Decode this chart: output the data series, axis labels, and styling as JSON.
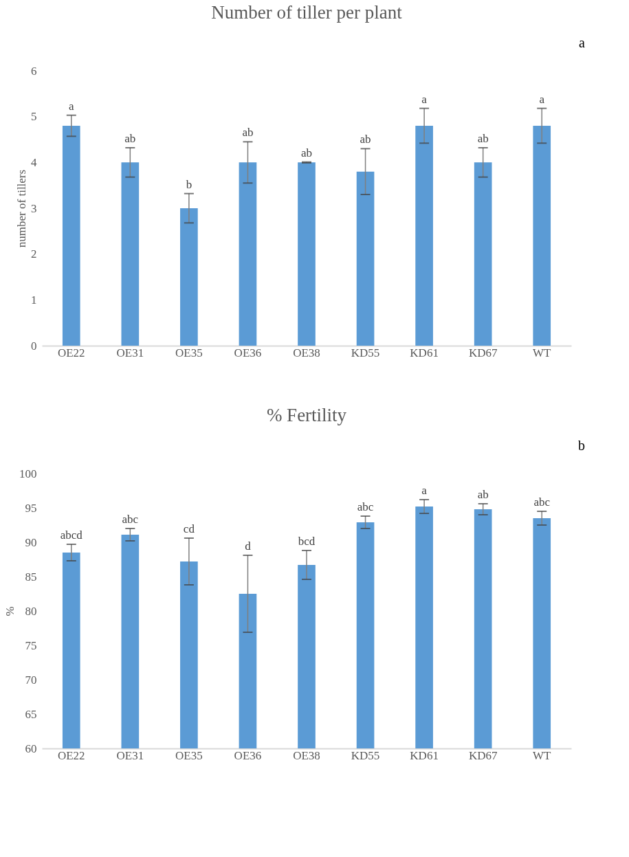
{
  "chart_data": [
    {
      "type": "bar",
      "title": "Number of tiller per plant",
      "ylabel": "number of tillers",
      "categories": [
        "OE22",
        "OE31",
        "OE35",
        "OE36",
        "OE38",
        "KD55",
        "KD61",
        "KD67",
        "WT"
      ],
      "values": [
        4.8,
        4.0,
        3.0,
        4.0,
        4.0,
        3.8,
        4.8,
        4.0,
        4.8
      ],
      "errors": [
        0.23,
        0.32,
        0.32,
        0.45,
        0.01,
        0.5,
        0.38,
        0.32,
        0.38
      ],
      "color": "#5b9bd5",
      "ylim": [
        0,
        6
      ],
      "yticks": [
        0,
        1,
        2,
        3,
        4,
        5,
        6
      ],
      "grid": false,
      "annotations": [
        {
          "text": "a",
          "x": "OE22",
          "y": 5.03
        },
        {
          "text": "ab",
          "x": "OE31",
          "y": 4.32
        },
        {
          "text": "b",
          "x": "OE35",
          "y": 3.32
        },
        {
          "text": "ab",
          "x": "OE36",
          "y": 4.45
        },
        {
          "text": "ab",
          "x": "OE38",
          "y": 4.01
        },
        {
          "text": "ab",
          "x": "KD55",
          "y": 4.3
        },
        {
          "text": "a",
          "x": "KD61",
          "y": 5.18
        },
        {
          "text": "ab",
          "x": "KD67",
          "y": 4.32
        },
        {
          "text": "a",
          "x": "WT",
          "y": 5.18
        },
        "a"
      ]
    },
    {
      "type": "bar",
      "title": "% Fertility",
      "ylabel": "%",
      "categories": [
        "OE22",
        "OE31",
        "OE35",
        "OE36",
        "OE38",
        "KD55",
        "KD61",
        "KD67",
        "WT"
      ],
      "values": [
        88.5,
        91.1,
        87.2,
        82.5,
        86.7,
        92.9,
        95.2,
        94.8,
        93.5
      ],
      "errors": [
        1.2,
        0.9,
        3.4,
        5.6,
        2.1,
        0.9,
        1.0,
        0.8,
        1.0
      ],
      "color": "#5b9bd5",
      "ylim": [
        60,
        100
      ],
      "yticks": [
        60,
        65,
        70,
        75,
        80,
        85,
        90,
        95,
        100
      ],
      "grid": false,
      "annotations": [
        {
          "text": "abcd",
          "x": "OE22",
          "y": 89.7
        },
        {
          "text": "abc",
          "x": "OE31",
          "y": 92.0
        },
        {
          "text": "cd",
          "x": "OE35",
          "y": 90.6
        },
        {
          "text": "d",
          "x": "OE36",
          "y": 88.1
        },
        {
          "text": "bcd",
          "x": "OE38",
          "y": 88.8
        },
        {
          "text": "abc",
          "x": "KD55",
          "y": 93.8
        },
        {
          "text": "a",
          "x": "KD61",
          "y": 96.2
        },
        {
          "text": "ab",
          "x": "KD67",
          "y": 95.6
        },
        {
          "text": "abc",
          "x": "WT",
          "y": 94.5
        },
        "b"
      ]
    }
  ]
}
